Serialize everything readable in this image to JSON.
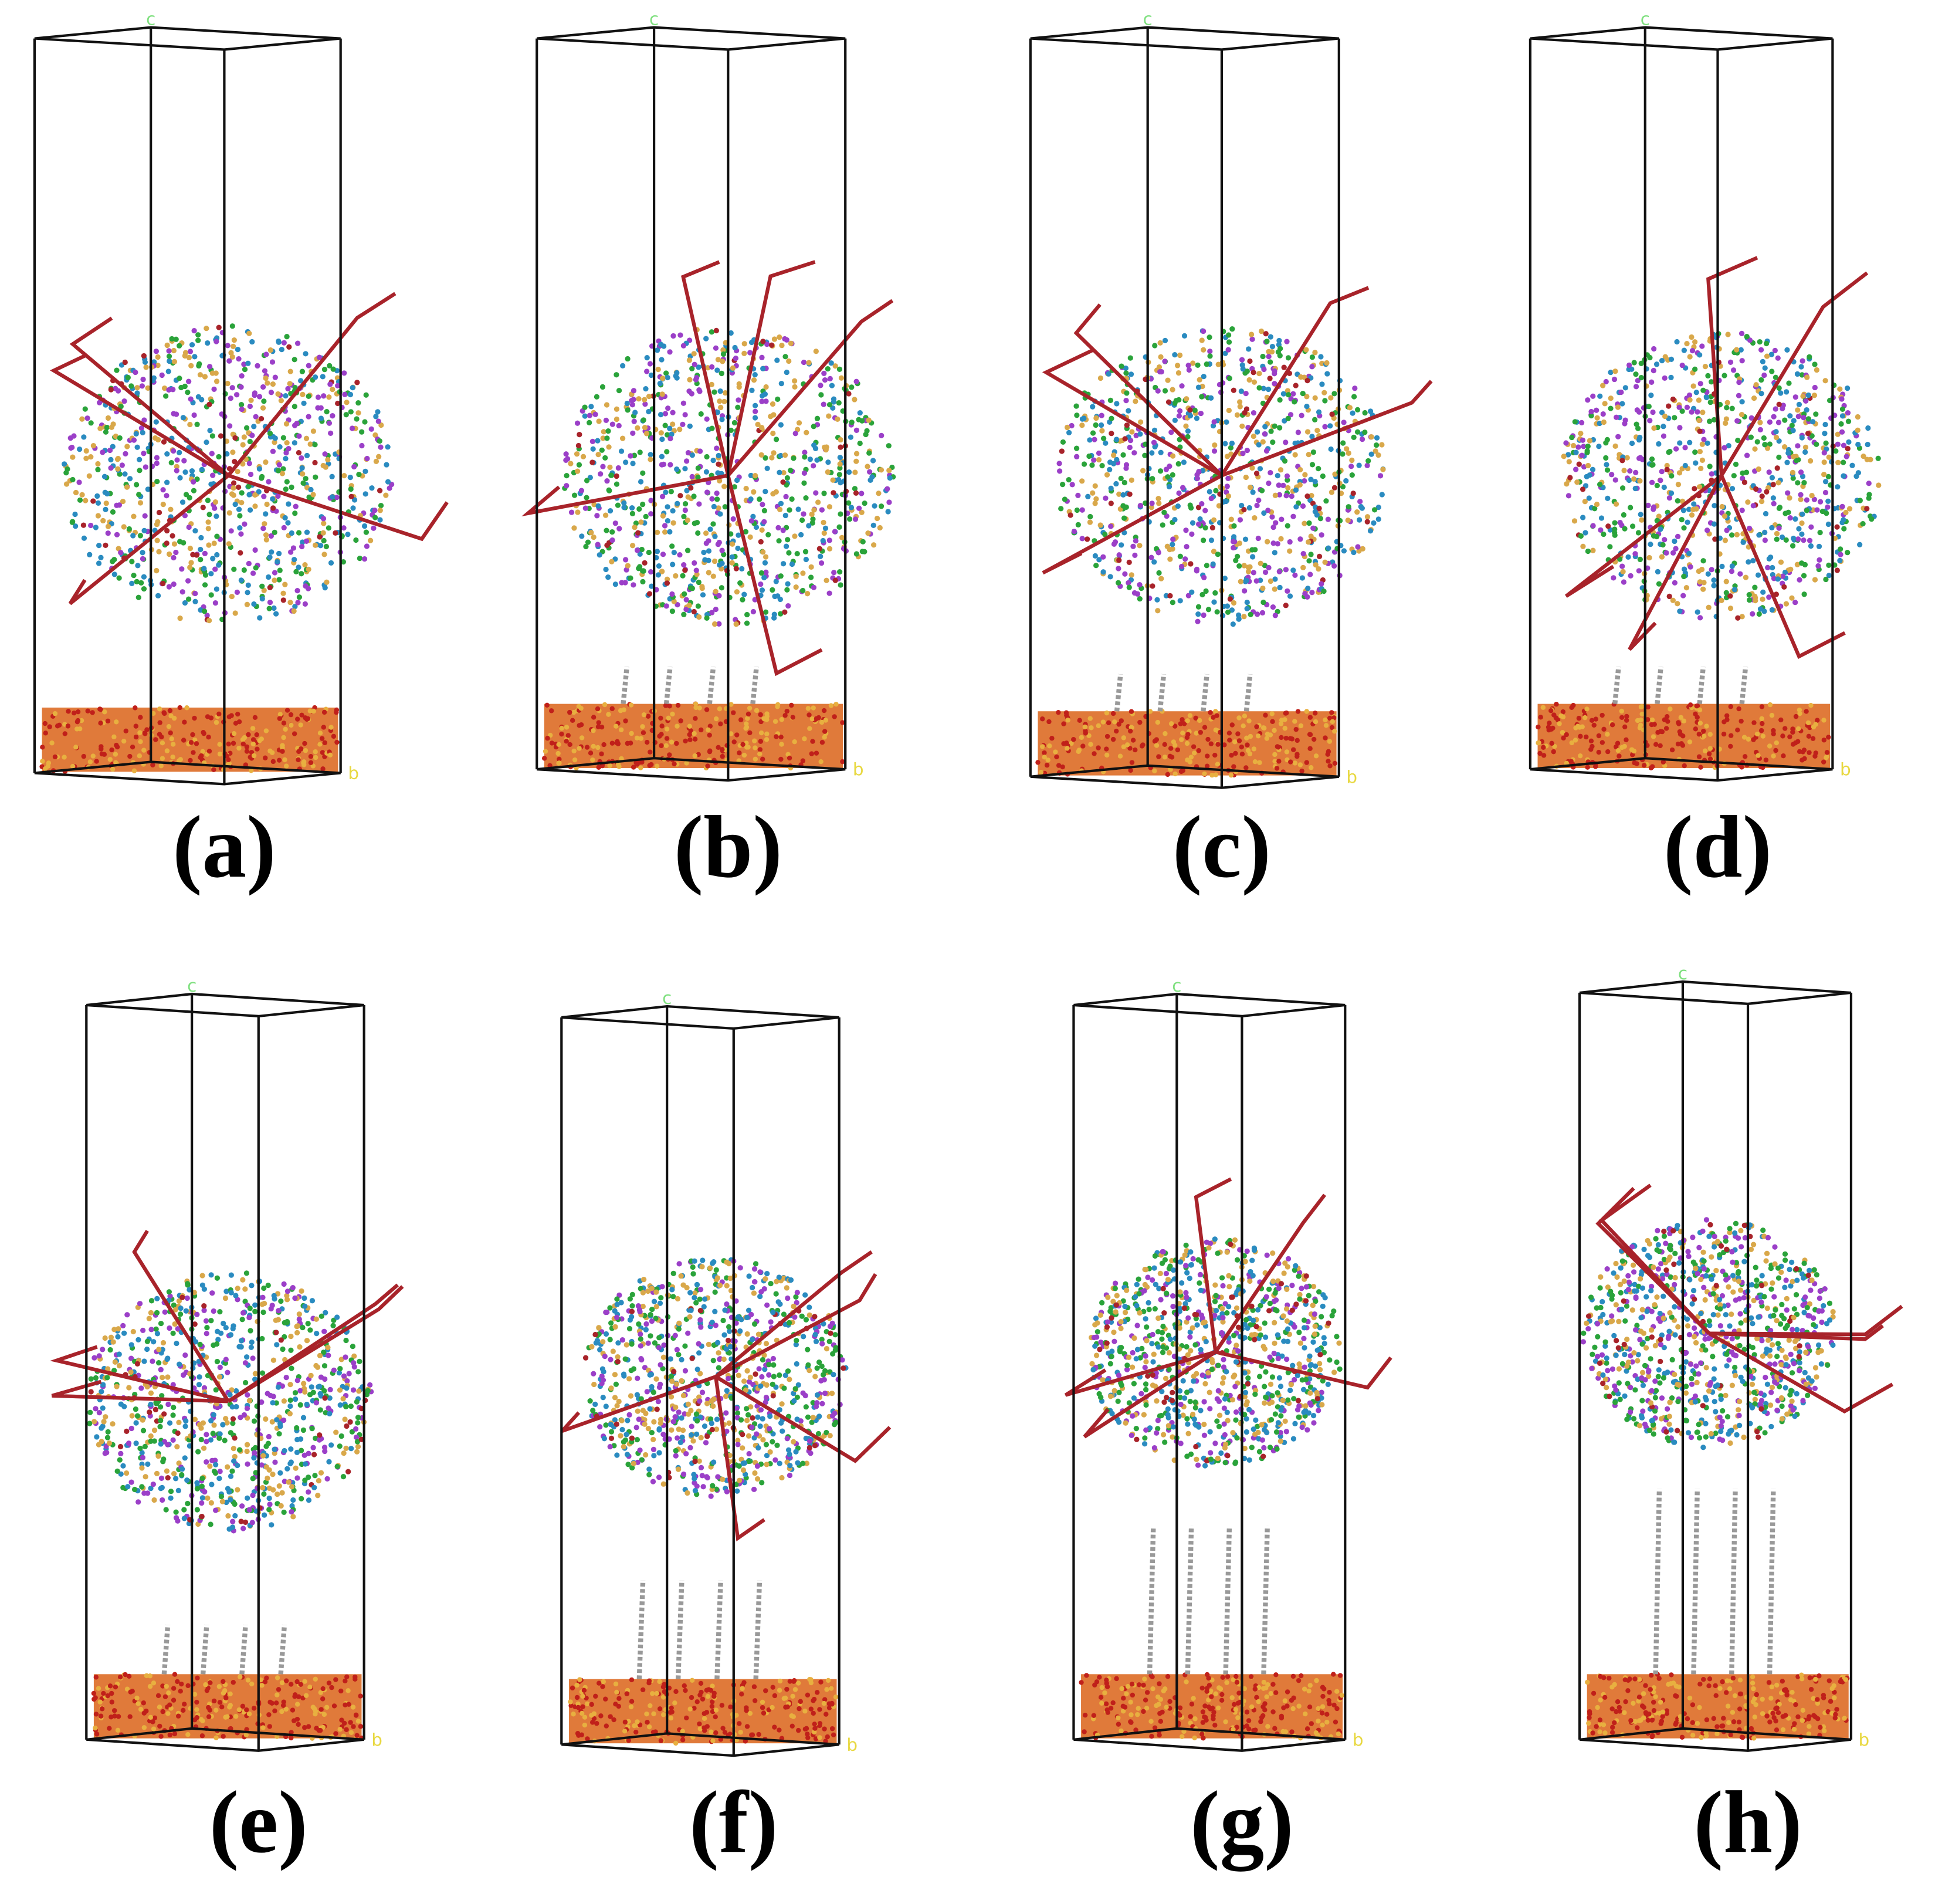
{
  "panels": [
    {
      "label": "(a)",
      "axis_c": "c",
      "axis_b": "b"
    },
    {
      "label": "(b)",
      "axis_c": "c",
      "axis_b": "b"
    },
    {
      "label": "(c)",
      "axis_c": "c",
      "axis_b": "b"
    },
    {
      "label": "(d)",
      "axis_c": "c",
      "axis_b": "b"
    },
    {
      "label": "(e)",
      "axis_c": "c",
      "axis_b": "b"
    },
    {
      "label": "(f)",
      "axis_c": "c",
      "axis_b": "b"
    },
    {
      "label": "(g)",
      "axis_c": "c",
      "axis_b": "b"
    },
    {
      "label": "(h)",
      "axis_c": "c",
      "axis_b": "b"
    }
  ]
}
